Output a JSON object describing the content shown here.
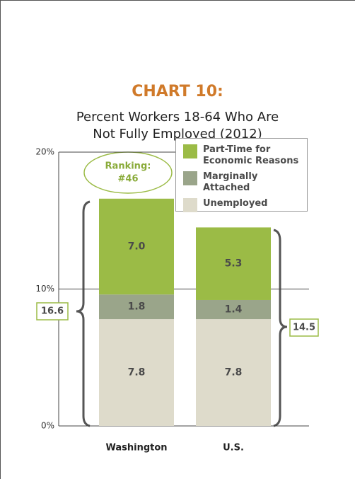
{
  "chart_data": {
    "type": "stacked-bar",
    "title": "CHART 10:",
    "subtitle": [
      "Percent Workers 18-64 Who Are",
      "Not Fully Employed (2012)"
    ],
    "categories": [
      "Washington",
      "U.S."
    ],
    "series": [
      {
        "name": "Unemployed",
        "color": "#dedbcb",
        "values": [
          7.8,
          7.8
        ]
      },
      {
        "name": "Marginally Attached",
        "color": "#9aa58a",
        "values": [
          1.8,
          1.4
        ]
      },
      {
        "name": "Part-Time for Economic Reasons",
        "color": "#9bbb46",
        "values": [
          7.0,
          5.3
        ],
        "value_labels": [
          "7.0",
          "5.3"
        ]
      }
    ],
    "totals": [
      16.6,
      14.5
    ],
    "annotation": [
      "Ranking:",
      "#46"
    ],
    "ylim": [
      0,
      20
    ],
    "yticks": [
      {
        "value": 0,
        "label": "0%"
      },
      {
        "value": 10,
        "label": "10%"
      },
      {
        "value": 20,
        "label": "20%"
      }
    ],
    "grid": true
  }
}
